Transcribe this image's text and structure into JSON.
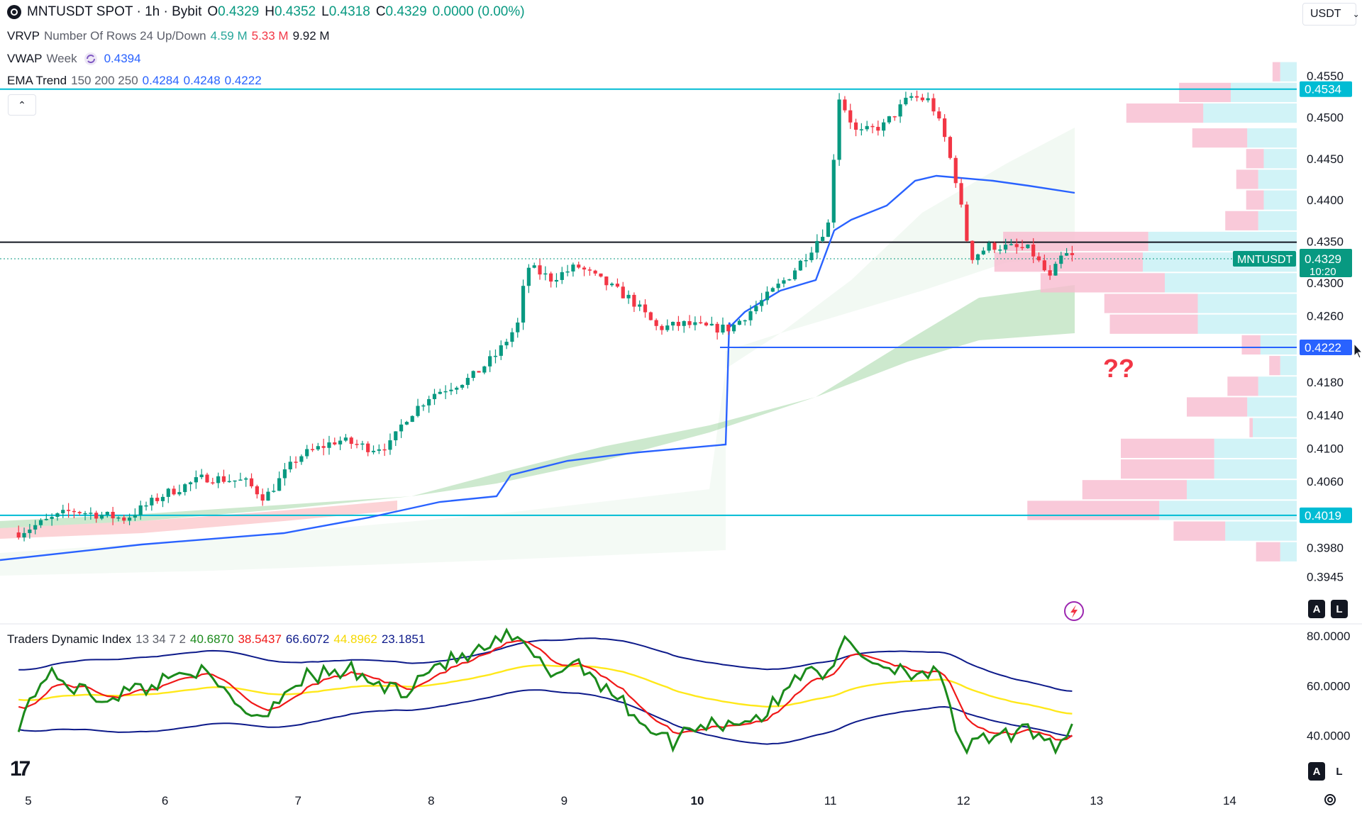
{
  "header": {
    "symbol": "MNTUSDT SPOT · 1h · Bybit",
    "o_label": "O",
    "o_value": "0.4329",
    "h_label": "H",
    "h_value": "0.4352",
    "l_label": "L",
    "l_value": "0.4318",
    "c_label": "C",
    "c_value": "0.4329",
    "change": "0.0000 (0.00%)"
  },
  "currency_button": {
    "label": "USDT",
    "icon": "chevron-down-icon"
  },
  "indicators": {
    "vrvp": {
      "name": "VRVP",
      "params": "Number Of Rows 24 Up/Down",
      "up": "4.59 M",
      "down": "5.33 M",
      "total": "9.92 M"
    },
    "vwap": {
      "name": "VWAP",
      "params": "Week",
      "value": "0.4394",
      "icon": "sync-icon"
    },
    "ema": {
      "name": "EMA Trend",
      "params": "150 200 250",
      "v1": "0.4284",
      "v2": "0.4248",
      "v3": "0.4222"
    },
    "collapse_icon": "chevron-up-icon"
  },
  "tdi": {
    "name": "Traders Dynamic Index",
    "params": "13 34 7 2",
    "v1": "40.6870",
    "v2": "38.5437",
    "v3": "66.6072",
    "v4": "44.8962",
    "v5": "23.1851"
  },
  "annotation_text": "??",
  "price_tag": {
    "symbol": "MNTUSDT",
    "price": "0.4329",
    "countdown": "10:20"
  },
  "level_tags": [
    "0.4534",
    "0.4222",
    "0.4019"
  ],
  "axis_buttons": {
    "auto": "A",
    "log": "L"
  },
  "colors": {
    "up": "#089981",
    "down": "#f23645",
    "vwap": "#2962ff",
    "level": "#00bcd4",
    "tdi_green": "#1b8a1b",
    "tdi_red": "#f01818",
    "tdi_yellow": "#ffe81a",
    "tdi_band": "#0d1a8a"
  },
  "chart_data": {
    "type": "candlestick",
    "price_axis_ticks": [
      "0.4550",
      "0.4500",
      "0.4450",
      "0.4400",
      "0.4350",
      "0.4300",
      "0.4260",
      "0.4180",
      "0.4140",
      "0.4100",
      "0.4060",
      "0.3980",
      "0.3945"
    ],
    "tdi_axis_ticks": [
      "80.0000",
      "60.0000",
      "40.0000"
    ],
    "x_ticks": [
      "5",
      "6",
      "7",
      "8",
      "9",
      "10",
      "11",
      "12",
      "13",
      "14"
    ],
    "ylim": [
      0.3935,
      0.458
    ],
    "tdi_ylim": [
      20,
      90
    ],
    "horizontal_levels": [
      {
        "value": 0.4534,
        "label": "0.4534"
      },
      {
        "value": 0.4349,
        "label": ""
      },
      {
        "value": 0.4222,
        "label": "0.4222"
      },
      {
        "value": 0.4019,
        "label": "0.4019"
      }
    ],
    "volume_profile": [
      {
        "price": 0.4555,
        "up": 15,
        "down": 7
      },
      {
        "price": 0.453,
        "up": 60,
        "down": 47
      },
      {
        "price": 0.4505,
        "up": 85,
        "down": 70
      },
      {
        "price": 0.4475,
        "up": 45,
        "down": 50
      },
      {
        "price": 0.445,
        "up": 30,
        "down": 16
      },
      {
        "price": 0.4425,
        "up": 35,
        "down": 20
      },
      {
        "price": 0.44,
        "up": 30,
        "down": 16
      },
      {
        "price": 0.4375,
        "up": 35,
        "down": 30
      },
      {
        "price": 0.435,
        "up": 135,
        "down": 132
      },
      {
        "price": 0.4325,
        "up": 140,
        "down": 135
      },
      {
        "price": 0.43,
        "up": 120,
        "down": 113
      },
      {
        "price": 0.4275,
        "up": 90,
        "down": 85
      },
      {
        "price": 0.425,
        "up": 90,
        "down": 80
      },
      {
        "price": 0.4225,
        "up": 33,
        "down": 17
      },
      {
        "price": 0.42,
        "up": 15,
        "down": 10
      },
      {
        "price": 0.4175,
        "up": 35,
        "down": 28
      },
      {
        "price": 0.415,
        "up": 45,
        "down": 55
      },
      {
        "price": 0.4125,
        "up": 40,
        "down": 3
      },
      {
        "price": 0.41,
        "up": 75,
        "down": 85
      },
      {
        "price": 0.4075,
        "up": 75,
        "down": 85
      },
      {
        "price": 0.405,
        "up": 100,
        "down": 95
      },
      {
        "price": 0.4025,
        "up": 125,
        "down": 120
      },
      {
        "price": 0.4,
        "up": 65,
        "down": 47
      },
      {
        "price": 0.3975,
        "up": 15,
        "down": 22
      }
    ]
  }
}
